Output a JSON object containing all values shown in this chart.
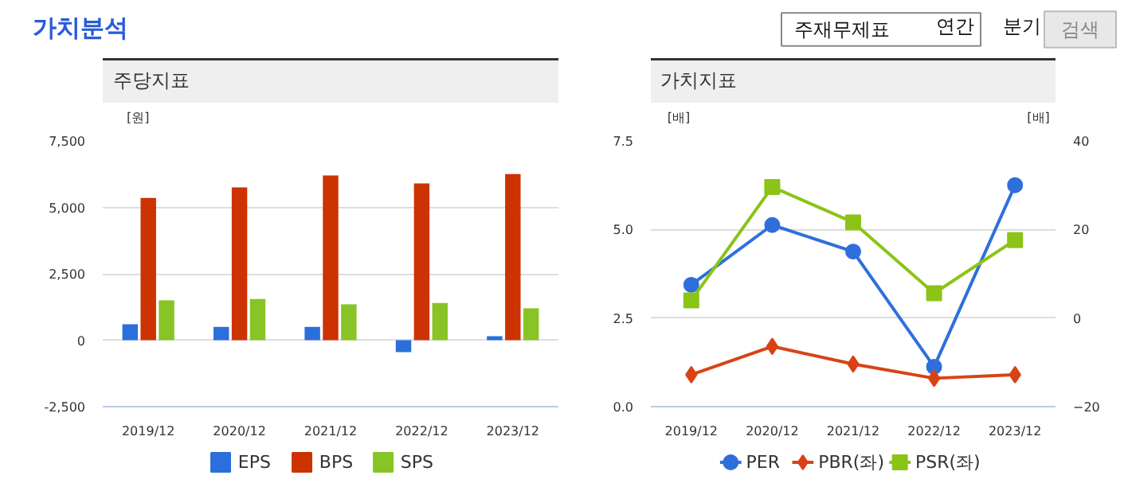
{
  "chart_data": [
    {
      "type": "other",
      "title": "가치분석",
      "annotations": [
        "주재무제표",
        "연간",
        "분기",
        "검색"
      ]
    },
    {
      "type": "bar",
      "title": "주당지표",
      "ylabel": "[원]",
      "categories": [
        "2019/12",
        "2020/12",
        "2021/12",
        "2022/12",
        "2023/12"
      ],
      "series": [
        {
          "name": "EPS",
          "color": "#2a6fdb",
          "values": [
            600,
            500,
            500,
            -450,
            150
          ]
        },
        {
          "name": "BPS",
          "color": "#cc3300",
          "values": [
            5350,
            5750,
            6200,
            5900,
            6250
          ]
        },
        {
          "name": "SPS",
          "color": "#88c425",
          "values": [
            1500,
            1550,
            1350,
            1400,
            1200
          ]
        }
      ],
      "ylim": [
        -2500,
        7500
      ],
      "yticks": [
        {
          "value": -2500,
          "label": "-2,500"
        },
        0,
        {
          "value": 2500,
          "label": "2,500"
        },
        {
          "value": 5000,
          "label": "5,000"
        },
        {
          "value": 7500,
          "label": "7,500"
        }
      ],
      "grid": "y",
      "legend": "bottom"
    },
    {
      "type": "line",
      "title": "가치지표",
      "ylabel": "[배]",
      "y2label": "[배]",
      "categories": [
        "2019/12",
        "2020/12",
        "2021/12",
        "2022/12",
        "2023/12"
      ],
      "series": [
        {
          "name": "PER",
          "color": "#2f6fdc",
          "axis": "y2",
          "marker": "circle",
          "values": [
            7.5,
            21,
            15,
            -11,
            30
          ]
        },
        {
          "name": "PBR(좌)",
          "color": "#d84315",
          "marker": "diamond",
          "values": [
            0.9,
            1.7,
            1.2,
            0.8,
            0.9
          ]
        },
        {
          "name": "PSR(좌)",
          "color": "#8bc417",
          "marker": "square",
          "values": [
            3.0,
            6.2,
            5.2,
            3.2,
            4.7
          ]
        }
      ],
      "ylim": [
        0,
        7.5
      ],
      "yticks": [
        {
          "value": 0,
          "label": "0.0"
        },
        {
          "value": 2.5,
          "label": "2.5"
        },
        {
          "value": 5,
          "label": "5.0"
        },
        {
          "value": 7.5,
          "label": "7.5"
        }
      ],
      "y2lim": [
        -20,
        40
      ],
      "y2ticks": [
        -20,
        0,
        20,
        40
      ],
      "grid": "y",
      "legend": "bottom"
    }
  ]
}
